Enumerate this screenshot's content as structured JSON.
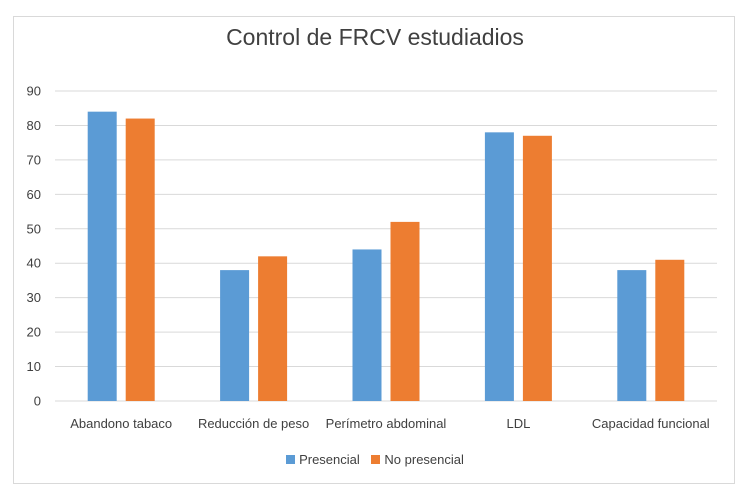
{
  "chart_data": {
    "type": "bar",
    "title": "Control de FRCV estudiadios",
    "xlabel": "",
    "ylabel": "",
    "ylim": [
      0,
      90
    ],
    "yticks": [
      0,
      10,
      20,
      30,
      40,
      50,
      60,
      70,
      80,
      90
    ],
    "grid": true,
    "legend_position": "bottom",
    "categories": [
      "Abandono tabaco",
      "Reducción de peso",
      "Perímetro abdominal",
      "LDL",
      "Capacidad funcional"
    ],
    "series": [
      {
        "name": "Presencial",
        "color": "#5b9bd5",
        "values": [
          84,
          38,
          44,
          78,
          38
        ]
      },
      {
        "name": "No presencial",
        "color": "#ed7d31",
        "values": [
          82,
          42,
          52,
          77,
          41
        ]
      }
    ]
  }
}
